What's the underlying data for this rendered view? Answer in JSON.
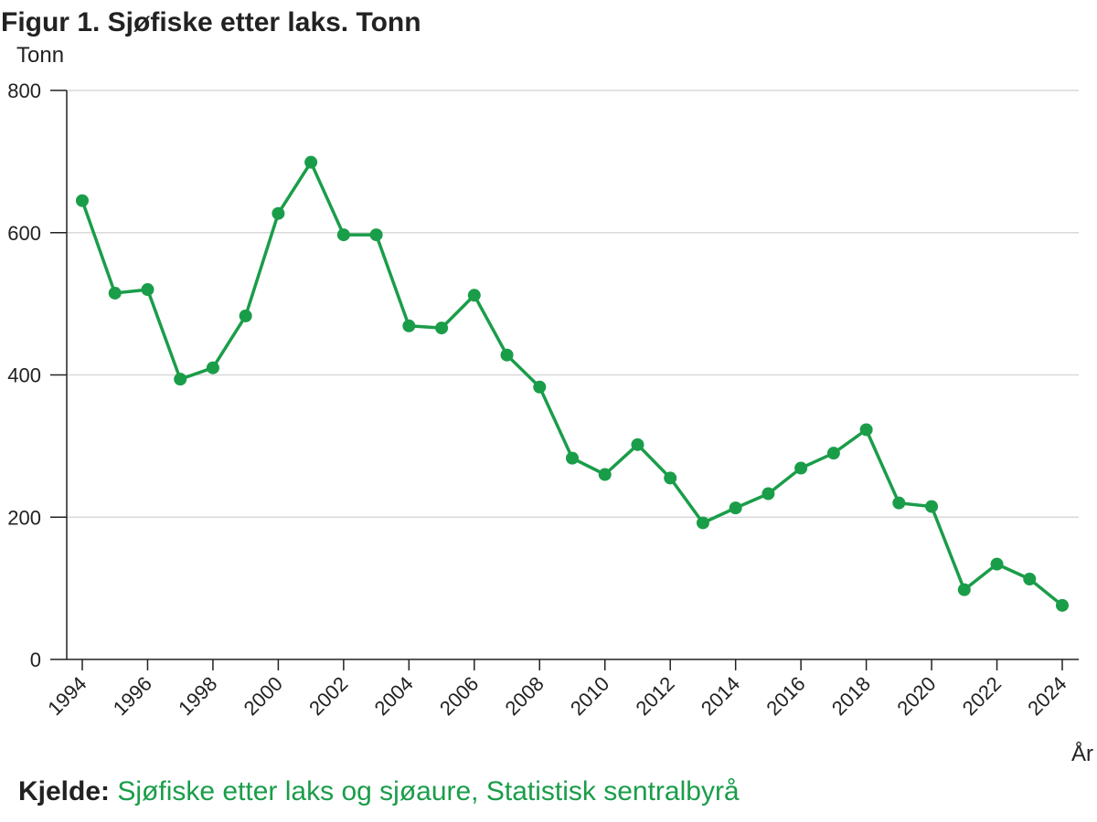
{
  "chart_data": {
    "type": "line",
    "title": "Figur 1. Sjøfiske etter laks. Tonn",
    "ylabel": "Tonn",
    "xlabel": "År",
    "ylim": [
      0,
      800
    ],
    "yticks": [
      0,
      200,
      400,
      600,
      800
    ],
    "xticks": [
      1994,
      1996,
      1998,
      2000,
      2002,
      2004,
      2006,
      2008,
      2010,
      2012,
      2014,
      2016,
      2018,
      2020,
      2022,
      2024
    ],
    "grid": true,
    "x": [
      1994,
      1995,
      1996,
      1997,
      1998,
      1999,
      2000,
      2001,
      2002,
      2003,
      2004,
      2005,
      2006,
      2007,
      2008,
      2009,
      2010,
      2011,
      2012,
      2013,
      2014,
      2015,
      2016,
      2017,
      2018,
      2019,
      2020,
      2021,
      2022,
      2023,
      2024
    ],
    "series": [
      {
        "values": [
          645,
          515,
          520,
          394,
          410,
          483,
          627,
          699,
          597,
          597,
          469,
          466,
          512,
          428,
          383,
          283,
          260,
          302,
          255,
          192,
          213,
          233,
          269,
          290,
          323,
          220,
          215,
          98,
          134,
          113,
          76
        ],
        "color": "#1a9d49"
      }
    ]
  },
  "source": {
    "lead": "Kjelde:",
    "text": "Sjøfiske etter laks og sjøaure, Statistisk sentralbyrå"
  }
}
